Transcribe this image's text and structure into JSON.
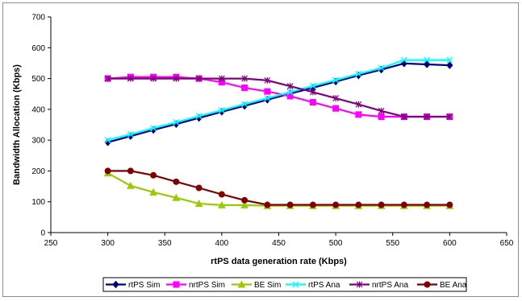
{
  "chart_data": {
    "type": "line",
    "title": "",
    "xlabel": "rtPS data generation rate (Kbps)",
    "ylabel": "Bandwidth Allocation (Kbps)",
    "xlim": [
      250,
      650
    ],
    "ylim": [
      0,
      700
    ],
    "xticks": [
      250,
      300,
      350,
      400,
      450,
      500,
      550,
      600,
      650
    ],
    "yticks": [
      0,
      100,
      200,
      300,
      400,
      500,
      600,
      700
    ],
    "grid": false,
    "legend_position": "bottom",
    "x": [
      300,
      320,
      340,
      360,
      380,
      400,
      420,
      440,
      460,
      480,
      500,
      520,
      540,
      560,
      580,
      600
    ],
    "series": [
      {
        "name": "rtPS Sim",
        "color": "#000080",
        "marker": "diamond",
        "values": [
          293,
          313,
          333,
          352,
          372,
          392,
          411,
          431,
          451,
          470,
          490,
          510,
          529,
          549,
          546,
          543
        ]
      },
      {
        "name": "nrtPS Sim",
        "color": "#ff00ff",
        "marker": "square",
        "values": [
          500,
          505,
          505,
          505,
          500,
          488,
          470,
          458,
          443,
          423,
          403,
          383,
          376,
          376,
          376,
          376
        ]
      },
      {
        "name": "BE Sim",
        "color": "#99cc00",
        "marker": "triangle",
        "values": [
          193,
          152,
          131,
          113,
          94,
          89,
          89,
          87,
          87,
          87,
          87,
          87,
          87,
          87,
          87,
          87
        ]
      },
      {
        "name": "rtPS Ana",
        "color": "#00ffff",
        "marker": "x",
        "values": [
          300,
          319,
          339,
          358,
          378,
          397,
          417,
          436,
          456,
          476,
          495,
          515,
          534,
          560,
          560,
          560
        ]
      },
      {
        "name": "nrtPS Ana",
        "color": "#800080",
        "marker": "star",
        "values": [
          500,
          500,
          500,
          500,
          500,
          500,
          500,
          494,
          475,
          456,
          436,
          416,
          395,
          376,
          376,
          376
        ]
      },
      {
        "name": "BE Ana",
        "color": "#800000",
        "marker": "circle",
        "values": [
          200,
          200,
          186,
          165,
          145,
          124,
          105,
          90,
          90,
          90,
          90,
          90,
          90,
          90,
          90,
          90
        ]
      }
    ]
  }
}
